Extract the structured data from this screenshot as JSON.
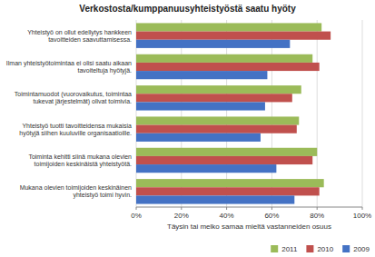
{
  "chart_data": {
    "type": "bar",
    "orientation": "horizontal",
    "title": "Verkostosta/kumppanuusyhteistyöstä saatu hyöty",
    "xlabel": "Täysin tai melko samaa mieltä vastanneiden osuus",
    "categories": [
      "Yhteistyö on ollut edellytys hankkeen\ntavoitteiden saavuttamisessa.",
      "Ilman yhteistyötoimintaa ei olisi saatu aikaan\ntavoiteltuja hyötyjä.",
      "Toimintamuodot (vuorovaikutus, toimintaa\ntukevat järjestelmät) olivat toimivia.",
      "Yhteistyö tuotti tavoitteidensa mukaisia\nhyötyjä siihen kuuluville organisaatioille.",
      "Toiminta kehitti siinä mukana olevien\ntoimijoiden keskinäistä yhteistyötä.",
      "Mukana olevien toimijoiden keskinäinen\nyhteistyö toimi hyvin."
    ],
    "series": [
      {
        "name": "2011",
        "color": "#9bbb59",
        "values": [
          82,
          78,
          73,
          72,
          80,
          83
        ]
      },
      {
        "name": "2010",
        "color": "#c0504d",
        "values": [
          86,
          81,
          69,
          71,
          78,
          81
        ]
      },
      {
        "name": "2009",
        "color": "#4472c4",
        "values": [
          68,
          58,
          57,
          55,
          62,
          70
        ]
      }
    ],
    "xlim": [
      0,
      100
    ],
    "xticks": [
      {
        "value": 0,
        "label": "0%"
      },
      {
        "value": 20,
        "label": "20%"
      },
      {
        "value": 40,
        "label": "40%"
      },
      {
        "value": 60,
        "label": "60%"
      },
      {
        "value": 80,
        "label": "80%"
      },
      {
        "value": 100,
        "label": "100%"
      }
    ],
    "grid": true,
    "legend": "lower right"
  }
}
